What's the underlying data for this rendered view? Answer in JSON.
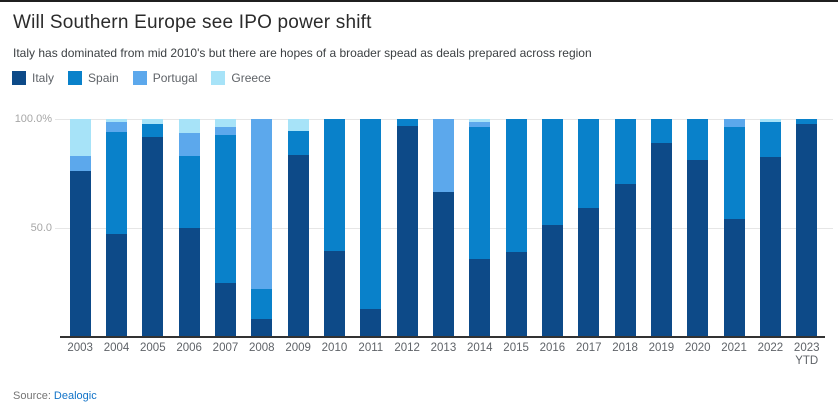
{
  "header": {
    "title": "Will Southern Europe see IPO power shift",
    "subtitle": "Italy has dominated from mid 2010's but there are hopes of a broader spead as deals prepared across region"
  },
  "footer": {
    "source_label": "Source:",
    "source_link": "Dealogic"
  },
  "chart_data": {
    "type": "bar",
    "stacked": true,
    "title": "Will Southern Europe see IPO power shift",
    "xlabel": "",
    "ylabel": "",
    "ylim": [
      0,
      100
    ],
    "grid": true,
    "legend_position": "top-left",
    "yticks": [
      {
        "label": "100.0%",
        "value": 100
      },
      {
        "label": "50.0",
        "value": 50
      }
    ],
    "categories": [
      "2003",
      "2004",
      "2005",
      "2006",
      "2007",
      "2008",
      "2009",
      "2010",
      "2011",
      "2012",
      "2013",
      "2014",
      "2015",
      "2016",
      "2017",
      "2018",
      "2019",
      "2020",
      "2021",
      "2022",
      "2023\nYTD"
    ],
    "series": [
      {
        "name": "Italy",
        "color": "#0d4a88",
        "values": [
          76,
          47,
          91.5,
          50,
          24.5,
          8,
          83.5,
          39,
          12.5,
          97,
          66.5,
          35.5,
          38.5,
          51,
          59,
          70,
          89,
          81,
          54,
          82.5,
          97.5
        ]
      },
      {
        "name": "Spain",
        "color": "#0981ca",
        "values": [
          0,
          47,
          6,
          33,
          68,
          13.5,
          11,
          61,
          87.5,
          3,
          0,
          61,
          61.5,
          49,
          41,
          30,
          11,
          19,
          42.5,
          16,
          2.5
        ]
      },
      {
        "name": "Portugal",
        "color": "#5ca8ec",
        "values": [
          7,
          4.5,
          0,
          10.5,
          4,
          78.5,
          0,
          0,
          0,
          0,
          33.5,
          2,
          0,
          0,
          0,
          0,
          0,
          0,
          3.5,
          0,
          0
        ]
      },
      {
        "name": "Greece",
        "color": "#a7e3f8",
        "values": [
          17,
          1.5,
          2.5,
          6.5,
          3.5,
          0,
          5.5,
          0,
          0,
          0,
          0,
          1.5,
          0,
          0,
          0,
          0,
          0,
          0,
          0,
          1.5,
          0
        ]
      }
    ]
  }
}
